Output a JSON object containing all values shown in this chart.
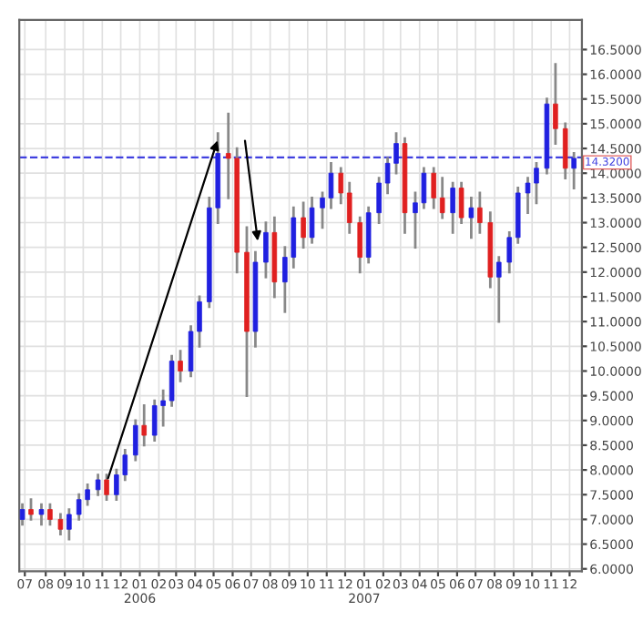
{
  "chart_data": {
    "type": "candlestick",
    "x": [
      "2005-07-08",
      "2005-07-22",
      "2005-08-08",
      "2005-08-22",
      "2005-09-08",
      "2005-09-22",
      "2005-10-08",
      "2005-10-22",
      "2005-11-08",
      "2005-11-22",
      "2005-12-08",
      "2005-12-22",
      "2006-01-08",
      "2006-01-22",
      "2006-02-08",
      "2006-02-22",
      "2006-03-08",
      "2006-03-22",
      "2006-04-08",
      "2006-04-22",
      "2006-05-08",
      "2006-05-22",
      "2006-06-08",
      "2006-06-22",
      "2006-07-08",
      "2006-07-22",
      "2006-08-08",
      "2006-08-22",
      "2006-09-08",
      "2006-09-22",
      "2006-10-08",
      "2006-10-22",
      "2006-11-08",
      "2006-11-22",
      "2006-12-08",
      "2006-12-22",
      "2007-01-08",
      "2007-01-22",
      "2007-02-08",
      "2007-02-22",
      "2007-03-08",
      "2007-03-22",
      "2007-04-08",
      "2007-04-22",
      "2007-05-08",
      "2007-05-22",
      "2007-06-08",
      "2007-06-22",
      "2007-07-08",
      "2007-07-22",
      "2007-08-08",
      "2007-08-22",
      "2007-09-08",
      "2007-09-22",
      "2007-10-08",
      "2007-10-22",
      "2007-11-08",
      "2007-11-22",
      "2007-12-08",
      "2007-12-22"
    ],
    "ohlc": [
      [
        7.0,
        7.3,
        6.9,
        7.2
      ],
      [
        7.2,
        7.4,
        7.0,
        7.1
      ],
      [
        7.1,
        7.3,
        6.9,
        7.2
      ],
      [
        7.2,
        7.3,
        6.9,
        7.0
      ],
      [
        7.0,
        7.1,
        6.7,
        6.8
      ],
      [
        6.8,
        7.2,
        6.6,
        7.1
      ],
      [
        7.1,
        7.5,
        7.0,
        7.4
      ],
      [
        7.4,
        7.7,
        7.3,
        7.6
      ],
      [
        7.6,
        7.9,
        7.5,
        7.8
      ],
      [
        7.8,
        7.9,
        7.4,
        7.5
      ],
      [
        7.5,
        8.0,
        7.4,
        7.9
      ],
      [
        7.9,
        8.4,
        7.8,
        8.3
      ],
      [
        8.3,
        9.0,
        8.2,
        8.9
      ],
      [
        8.9,
        9.3,
        8.5,
        8.7
      ],
      [
        8.7,
        9.4,
        8.6,
        9.3
      ],
      [
        9.3,
        9.6,
        8.9,
        9.4
      ],
      [
        9.4,
        10.3,
        9.3,
        10.2
      ],
      [
        10.2,
        10.4,
        9.8,
        10.0
      ],
      [
        10.0,
        10.9,
        9.9,
        10.8
      ],
      [
        10.8,
        11.5,
        10.5,
        11.4
      ],
      [
        11.4,
        13.5,
        11.3,
        13.3
      ],
      [
        13.3,
        14.8,
        13.0,
        14.4
      ],
      [
        14.4,
        15.2,
        13.5,
        14.3
      ],
      [
        14.3,
        14.5,
        12.0,
        12.4
      ],
      [
        12.4,
        12.9,
        9.5,
        10.8
      ],
      [
        10.8,
        12.4,
        10.5,
        12.2
      ],
      [
        12.2,
        13.0,
        11.9,
        12.8
      ],
      [
        12.8,
        13.1,
        11.5,
        11.8
      ],
      [
        11.8,
        12.5,
        11.2,
        12.3
      ],
      [
        12.3,
        13.3,
        12.1,
        13.1
      ],
      [
        13.1,
        13.4,
        12.5,
        12.7
      ],
      [
        12.7,
        13.5,
        12.6,
        13.3
      ],
      [
        13.3,
        13.6,
        12.9,
        13.5
      ],
      [
        13.5,
        14.2,
        13.3,
        14.0
      ],
      [
        14.0,
        14.1,
        13.4,
        13.6
      ],
      [
        13.6,
        13.8,
        12.8,
        13.0
      ],
      [
        13.0,
        13.1,
        12.0,
        12.3
      ],
      [
        12.3,
        13.3,
        12.2,
        13.2
      ],
      [
        13.2,
        13.9,
        13.0,
        13.8
      ],
      [
        13.8,
        14.3,
        13.6,
        14.2
      ],
      [
        14.2,
        14.8,
        14.0,
        14.6
      ],
      [
        14.6,
        14.7,
        12.8,
        13.2
      ],
      [
        13.2,
        13.6,
        12.5,
        13.4
      ],
      [
        13.4,
        14.1,
        13.3,
        14.0
      ],
      [
        14.0,
        14.1,
        13.3,
        13.5
      ],
      [
        13.5,
        13.9,
        13.1,
        13.2
      ],
      [
        13.2,
        13.8,
        12.8,
        13.7
      ],
      [
        13.7,
        13.8,
        13.0,
        13.1
      ],
      [
        13.1,
        13.5,
        12.7,
        13.3
      ],
      [
        13.3,
        13.6,
        12.8,
        13.0
      ],
      [
        13.0,
        13.2,
        11.7,
        11.9
      ],
      [
        11.9,
        12.3,
        11.0,
        12.2
      ],
      [
        12.2,
        12.8,
        12.0,
        12.7
      ],
      [
        12.7,
        13.7,
        12.6,
        13.6
      ],
      [
        13.6,
        13.9,
        13.2,
        13.8
      ],
      [
        13.8,
        14.2,
        13.4,
        14.1
      ],
      [
        14.1,
        15.5,
        14.0,
        15.4
      ],
      [
        15.4,
        16.2,
        14.6,
        14.9
      ],
      [
        14.9,
        15.0,
        13.9,
        14.1
      ],
      [
        14.1,
        14.4,
        13.7,
        14.3
      ]
    ],
    "colors": [
      "#2020e0",
      "#e02020",
      "#2020e0",
      "#e02020",
      "#e02020",
      "#2020e0",
      "#2020e0",
      "#2020e0",
      "#2020e0",
      "#e02020",
      "#2020e0",
      "#2020e0",
      "#2020e0",
      "#e02020",
      "#2020e0",
      "#2020e0",
      "#2020e0",
      "#e02020",
      "#2020e0",
      "#2020e0",
      "#2020e0",
      "#2020e0",
      "#e02020",
      "#e02020",
      "#e02020",
      "#2020e0",
      "#2020e0",
      "#e02020",
      "#2020e0",
      "#2020e0",
      "#e02020",
      "#2020e0",
      "#2020e0",
      "#2020e0",
      "#e02020",
      "#e02020",
      "#e02020",
      "#2020e0",
      "#2020e0",
      "#2020e0",
      "#2020e0",
      "#e02020",
      "#2020e0",
      "#2020e0",
      "#e02020",
      "#e02020",
      "#2020e0",
      "#e02020",
      "#2020e0",
      "#e02020",
      "#e02020",
      "#2020e0",
      "#2020e0",
      "#2020e0",
      "#2020e0",
      "#2020e0",
      "#2020e0",
      "#e02020",
      "#e02020",
      "#2020e0"
    ],
    "xlim": [
      "2005-07-03",
      "2008-01-04"
    ],
    "xticks": [
      {
        "value": "2005-07-12",
        "label": "07"
      },
      {
        "value": "2005-08-15",
        "label": "08"
      },
      {
        "value": "2005-09-15",
        "label": "09"
      },
      {
        "value": "2005-10-15",
        "label": "10"
      },
      {
        "value": "2005-11-15",
        "label": "11"
      },
      {
        "value": "2005-12-15",
        "label": "12"
      },
      {
        "value": "2006-01-15",
        "label": "01\n2006"
      },
      {
        "value": "2006-02-15",
        "label": "02"
      },
      {
        "value": "2006-03-15",
        "label": "03"
      },
      {
        "value": "2006-04-15",
        "label": "04"
      },
      {
        "value": "2006-05-15",
        "label": "05"
      },
      {
        "value": "2006-06-15",
        "label": "06"
      },
      {
        "value": "2006-07-15",
        "label": "07"
      },
      {
        "value": "2006-08-15",
        "label": "08"
      },
      {
        "value": "2006-09-15",
        "label": "09"
      },
      {
        "value": "2006-10-15",
        "label": "10"
      },
      {
        "value": "2006-11-15",
        "label": "11"
      },
      {
        "value": "2006-12-15",
        "label": "12"
      },
      {
        "value": "2007-01-15",
        "label": "01\n2007"
      },
      {
        "value": "2007-02-15",
        "label": "02"
      },
      {
        "value": "2007-03-15",
        "label": "03"
      },
      {
        "value": "2007-04-15",
        "label": "04"
      },
      {
        "value": "2007-05-15",
        "label": "05"
      },
      {
        "value": "2007-06-15",
        "label": "06"
      },
      {
        "value": "2007-07-15",
        "label": "07"
      },
      {
        "value": "2007-08-15",
        "label": "08"
      },
      {
        "value": "2007-09-15",
        "label": "09"
      },
      {
        "value": "2007-10-15",
        "label": "10"
      },
      {
        "value": "2007-11-15",
        "label": "11"
      },
      {
        "value": "2007-12-15",
        "label": "12"
      }
    ],
    "ylim": [
      5.95,
      17.1
    ],
    "yticks": [
      {
        "value": 6,
        "label": "6.0000"
      },
      {
        "value": 6.5,
        "label": "6.5000"
      },
      {
        "value": 7,
        "label": "7.0000"
      },
      {
        "value": 7.5,
        "label": "7.5000"
      },
      {
        "value": 8,
        "label": "8.0000"
      },
      {
        "value": 8.5,
        "label": "8.5000"
      },
      {
        "value": 9,
        "label": "9.0000"
      },
      {
        "value": 9.5,
        "label": "9.5000"
      },
      {
        "value": 10,
        "label": "10.0000"
      },
      {
        "value": 10.5,
        "label": "10.5000"
      },
      {
        "value": 11,
        "label": "11.0000"
      },
      {
        "value": 11.5,
        "label": "11.5000"
      },
      {
        "value": 12,
        "label": "12.0000"
      },
      {
        "value": 12.5,
        "label": "12.5000"
      },
      {
        "value": 13,
        "label": "13.0000"
      },
      {
        "value": 13.5,
        "label": "13.5000"
      },
      {
        "value": 14,
        "label": "14.0000"
      },
      {
        "value": 14.5,
        "label": "14.5000"
      },
      {
        "value": 15,
        "label": "15.0000"
      },
      {
        "value": 15.5,
        "label": "15.5000"
      },
      {
        "value": 16,
        "label": "16.0000"
      },
      {
        "value": 16.5,
        "label": "16.5000"
      }
    ],
    "ref_lines": [
      {
        "axis": "y",
        "value": 14.32,
        "label": "14.3200",
        "color": "#4040e0",
        "line_style": "dashed"
      }
    ],
    "grid": true
  }
}
